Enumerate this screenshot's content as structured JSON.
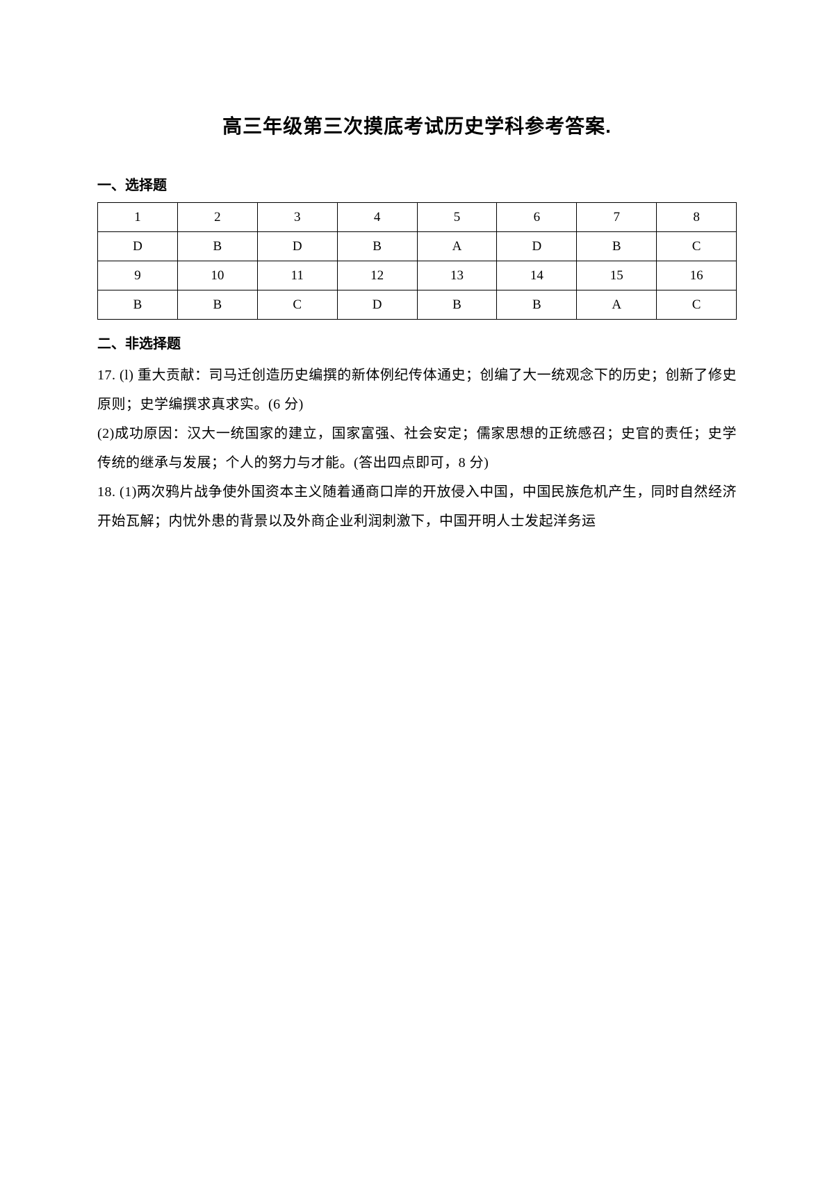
{
  "title": "高三年级第三次摸底考试历史学科参考答案.",
  "section1_heading": "一、选择题",
  "answer_table": {
    "row1": [
      "1",
      "2",
      "3",
      "4",
      "5",
      "6",
      "7",
      "8"
    ],
    "row2": [
      "D",
      "B",
      "D",
      "B",
      "A",
      "D",
      "B",
      "C"
    ],
    "row3": [
      "9",
      "10",
      "11",
      "12",
      "13",
      "14",
      "15",
      "16"
    ],
    "row4": [
      "B",
      "B",
      "C",
      "D",
      "B",
      "B",
      "A",
      "C"
    ]
  },
  "section2_heading": "二、非选择题",
  "q17_1": "17. (l) 重大贡献：司马迁创造历史编撰的新体例纪传体通史；创编了大一统观念下的历史；创新了修史原则；史学编撰求真求实。(6 分)",
  "q17_2": "(2)成功原因：汉大一统国家的建立，国家富强、社会安定；儒家思想的正统感召；史官的责任；史学传统的继承与发展；个人的努力与才能。(答出四点即可，8 分)",
  "q18_1": "18. (1)两次鸦片战争使外国资本主义随着通商口岸的开放侵入中国，中国民族危机产生，同时自然经济开始瓦解；内忧外患的背景以及外商企业利润刺激下，中国开明人士发起洋务运"
}
